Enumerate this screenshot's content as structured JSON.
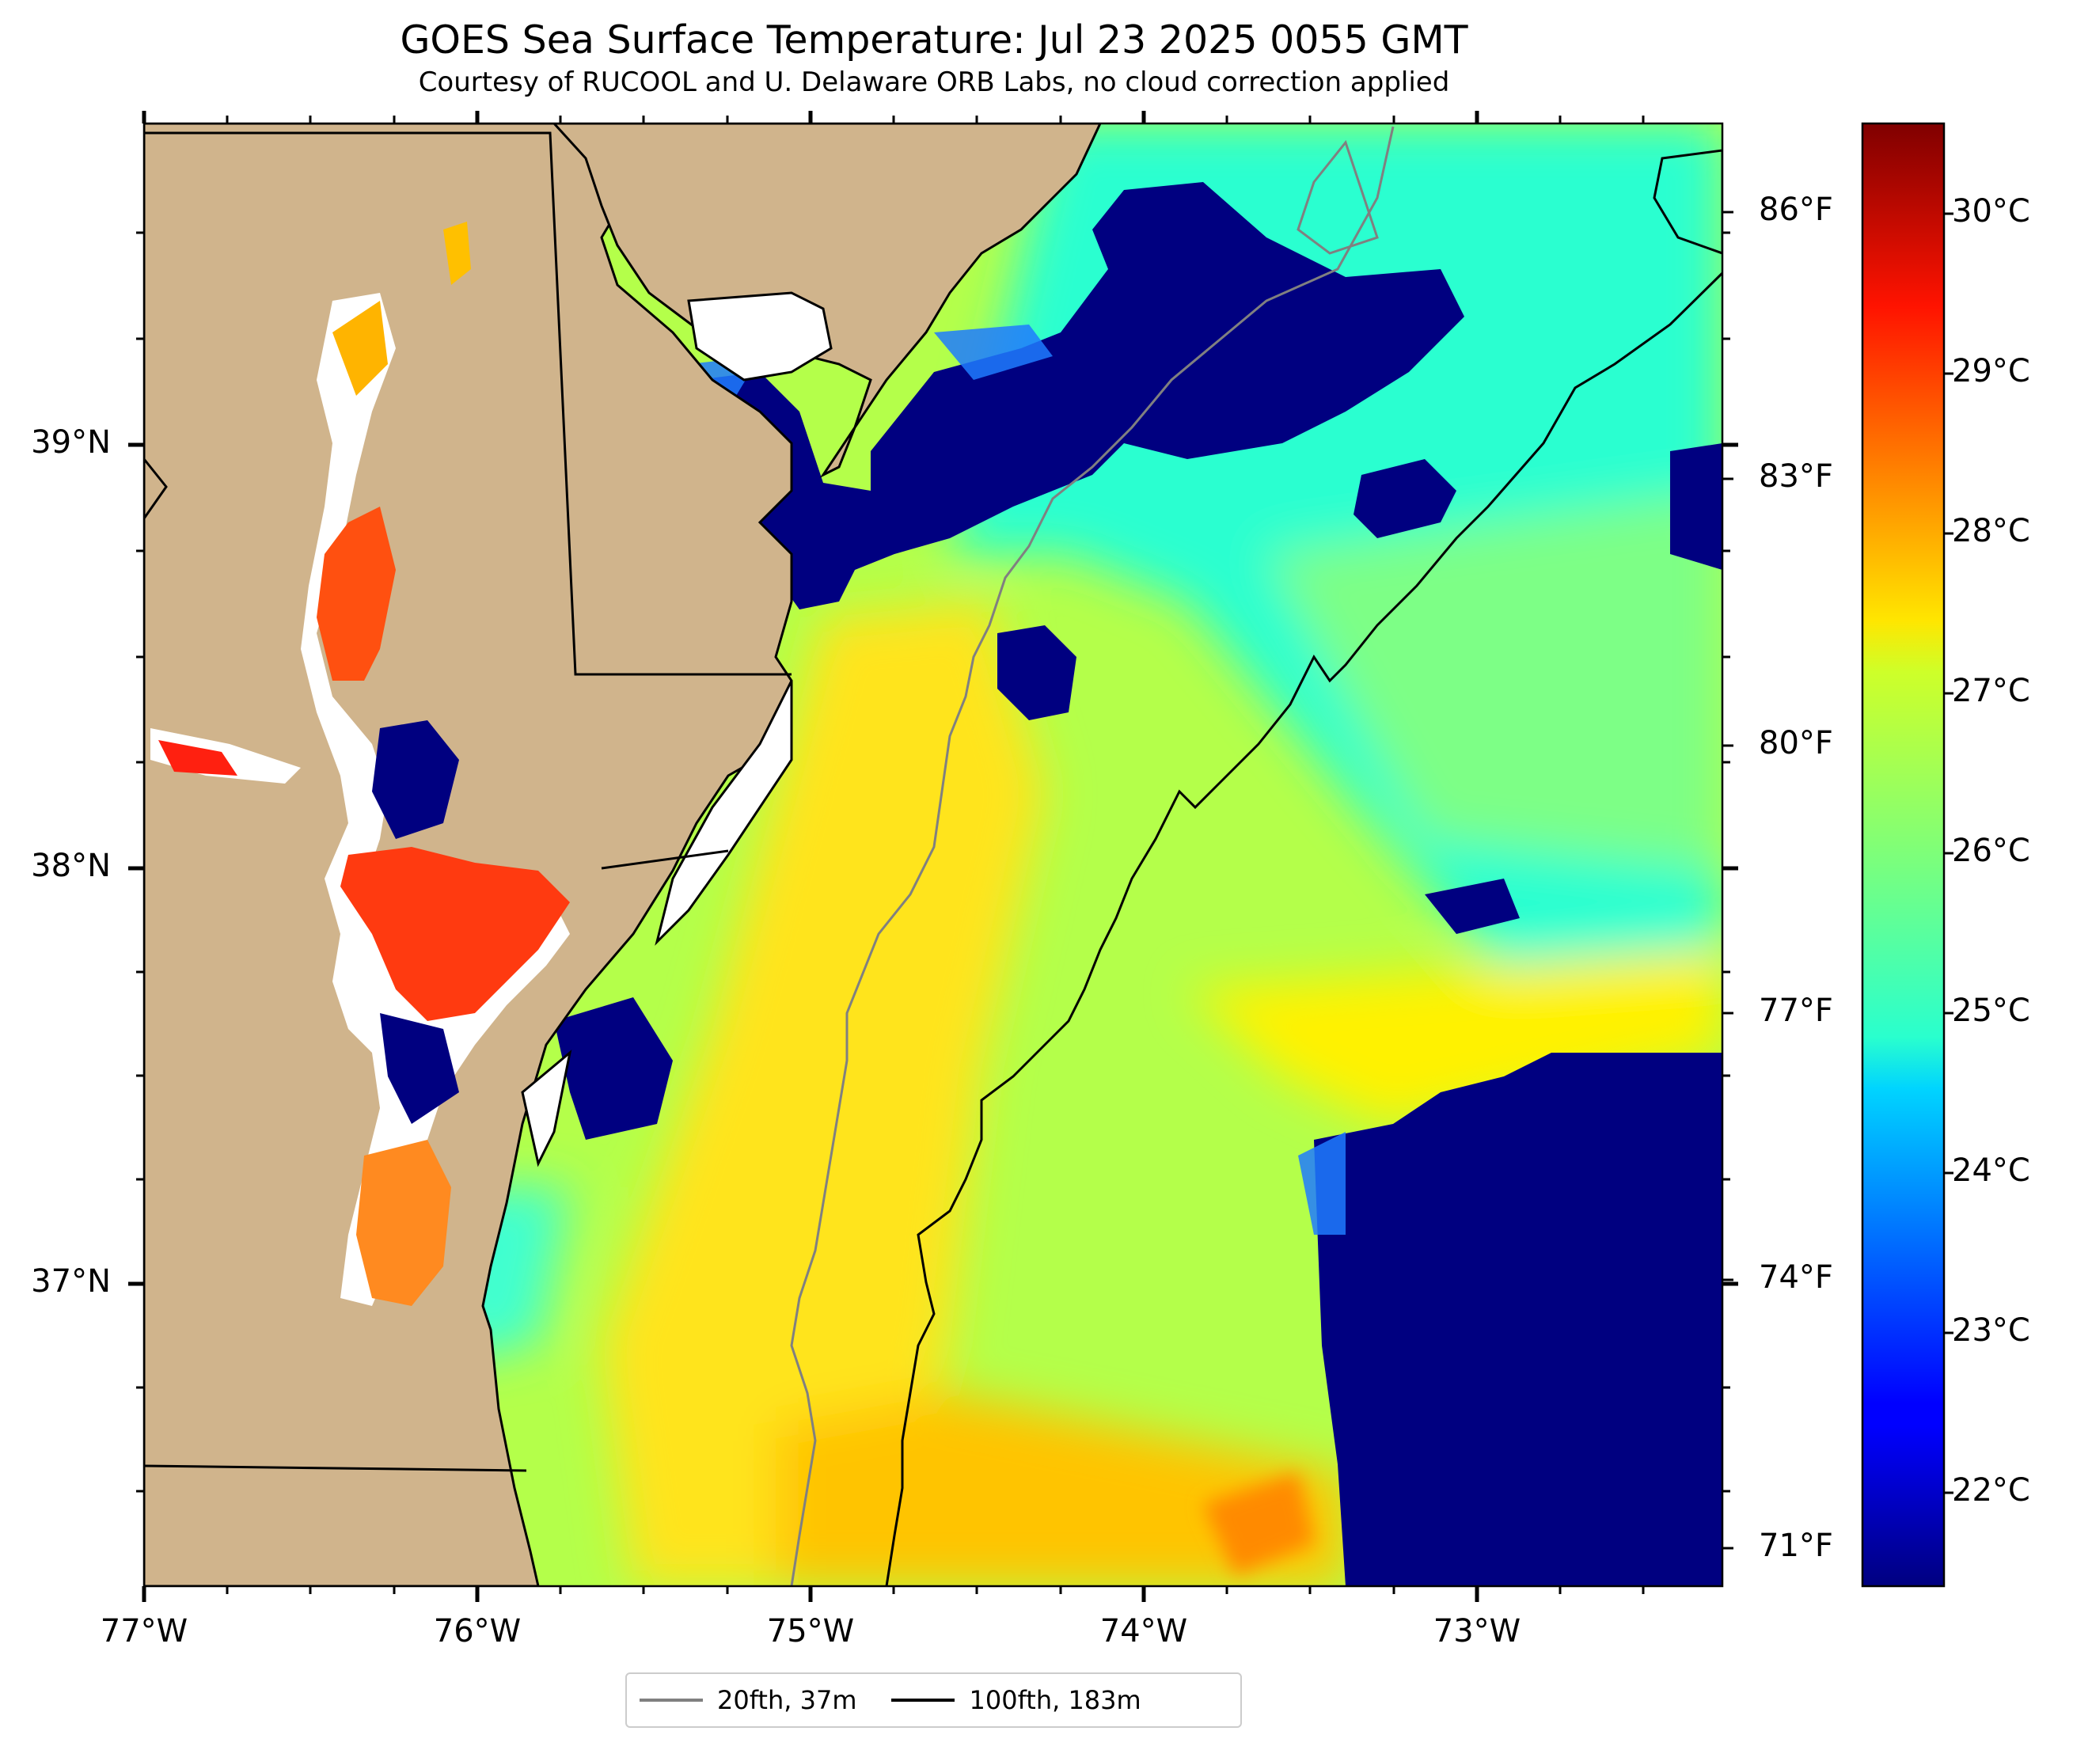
{
  "title": "GOES Sea Surface Temperature: Jul 23 2025 0055 GMT",
  "subtitle": "Courtesy of RUCOOL and U. Delaware ORB Labs, no cloud correction applied",
  "lat_labels": [
    "39°N",
    "38°N",
    "37°N"
  ],
  "lon_labels": [
    "77°W",
    "76°W",
    "75°W",
    "74°W",
    "73°W"
  ],
  "colorbar": {
    "fahrenheit_labels": [
      "86°F",
      "83°F",
      "80°F",
      "77°F",
      "74°F",
      "71°F"
    ],
    "celsius_labels": [
      "30°C",
      "29°C",
      "28°C",
      "27°C",
      "26°C",
      "25°C",
      "24°C",
      "23°C",
      "22°C"
    ],
    "colormap": "jet",
    "range_c": [
      21.5,
      30.5
    ]
  },
  "legend": [
    {
      "label": "20fth, 37m",
      "color": "#808080"
    },
    {
      "label": "100fth, 183m",
      "color": "#000000"
    }
  ],
  "colors": {
    "land": "#d0b48c",
    "cold": "#000080",
    "hot": "#800000"
  }
}
